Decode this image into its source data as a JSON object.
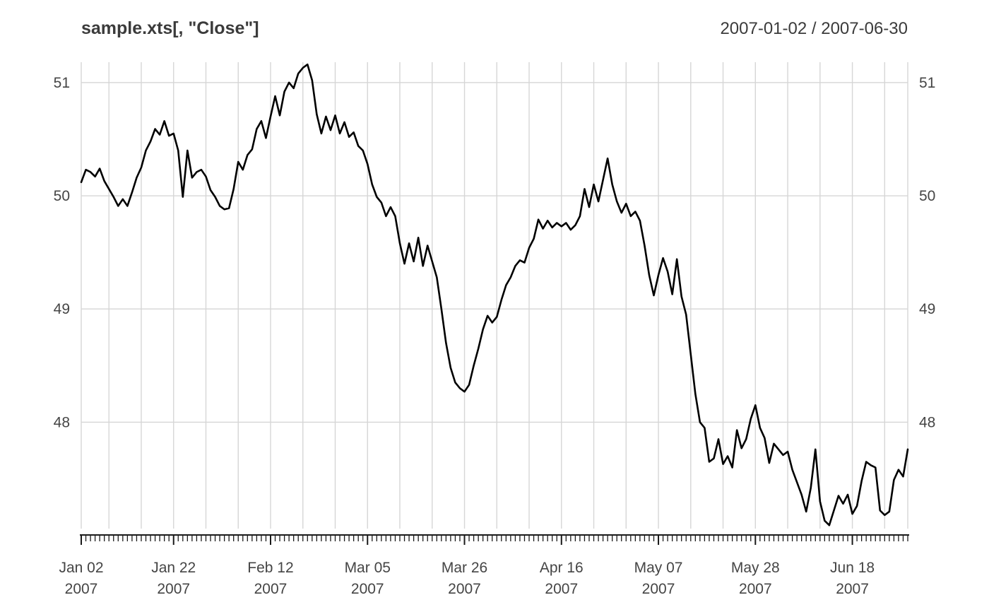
{
  "header": {
    "title": "sample.xts[, \"Close\"]",
    "date_range": "2007-01-02 / 2007-06-30"
  },
  "colors": {
    "background": "#ffffff",
    "series_line": "#000000",
    "grid_line": "#d6d6d6",
    "axis_line": "#1a1a1a",
    "axis_text": "#454545",
    "title_text": "#3b3b3b"
  },
  "chart_data": {
    "type": "line",
    "title": "sample.xts[, \"Close\"]",
    "subtitle": "2007-01-02 / 2007-06-30",
    "series_name": "Close",
    "x_start": "2007-01-02",
    "x_end": "2007-06-30",
    "frequency": "daily",
    "grid": true,
    "legend_position": "none",
    "ylim": [
      47.06,
      51.18
    ],
    "yticks": [
      48,
      49,
      50,
      51
    ],
    "ytick_labels_both_sides": true,
    "x_tick_labels": [
      {
        "label": "Jan 02",
        "year": "2007",
        "index": 0
      },
      {
        "label": "Jan 22",
        "year": "2007",
        "index": 20
      },
      {
        "label": "Feb 12",
        "year": "2007",
        "index": 41
      },
      {
        "label": "Mar 05",
        "year": "2007",
        "index": 62
      },
      {
        "label": "Mar 26",
        "year": "2007",
        "index": 83
      },
      {
        "label": "Apr 16",
        "year": "2007",
        "index": 104
      },
      {
        "label": "May 07",
        "year": "2007",
        "index": 125
      },
      {
        "label": "May 28",
        "year": "2007",
        "index": 146
      },
      {
        "label": "Jun 18",
        "year": "2007",
        "index": 167
      }
    ],
    "values": [
      50.12,
      50.23,
      50.21,
      50.17,
      50.24,
      50.13,
      50.06,
      49.99,
      49.91,
      49.97,
      49.91,
      50.03,
      50.16,
      50.25,
      50.4,
      50.48,
      50.59,
      50.54,
      50.66,
      50.53,
      50.55,
      50.4,
      49.99,
      50.4,
      50.16,
      50.21,
      50.23,
      50.17,
      50.05,
      49.99,
      49.91,
      49.88,
      49.89,
      50.06,
      50.3,
      50.23,
      50.36,
      50.41,
      50.59,
      50.66,
      50.51,
      50.7,
      50.88,
      50.71,
      50.92,
      51.0,
      50.95,
      51.08,
      51.13,
      51.16,
      51.02,
      50.72,
      50.55,
      50.7,
      50.58,
      50.71,
      50.55,
      50.65,
      50.52,
      50.56,
      50.44,
      50.4,
      50.28,
      50.1,
      49.99,
      49.94,
      49.82,
      49.9,
      49.82,
      49.58,
      49.4,
      49.58,
      49.42,
      49.63,
      49.38,
      49.56,
      49.42,
      49.28,
      49.0,
      48.7,
      48.48,
      48.35,
      48.3,
      48.27,
      48.33,
      48.5,
      48.65,
      48.82,
      48.94,
      48.88,
      48.93,
      49.08,
      49.21,
      49.28,
      49.38,
      49.43,
      49.41,
      49.54,
      49.62,
      49.79,
      49.71,
      49.78,
      49.72,
      49.76,
      49.73,
      49.76,
      49.7,
      49.74,
      49.82,
      50.06,
      49.9,
      50.1,
      49.95,
      50.14,
      50.33,
      50.1,
      49.95,
      49.85,
      49.93,
      49.82,
      49.86,
      49.78,
      49.56,
      49.3,
      49.12,
      49.3,
      49.45,
      49.33,
      49.13,
      49.44,
      49.11,
      48.95,
      48.6,
      48.25,
      48.0,
      47.95,
      47.65,
      47.68,
      47.85,
      47.63,
      47.7,
      47.6,
      47.93,
      47.77,
      47.85,
      48.03,
      48.15,
      47.95,
      47.86,
      47.64,
      47.81,
      47.76,
      47.71,
      47.74,
      47.58,
      47.47,
      47.36,
      47.21,
      47.42,
      47.76,
      47.3,
      47.13,
      47.09,
      47.22,
      47.35,
      47.28,
      47.36,
      47.19,
      47.26,
      47.48,
      47.65,
      47.62,
      47.6,
      47.22,
      47.18,
      47.21,
      47.49,
      47.58,
      47.52,
      47.76
    ]
  }
}
